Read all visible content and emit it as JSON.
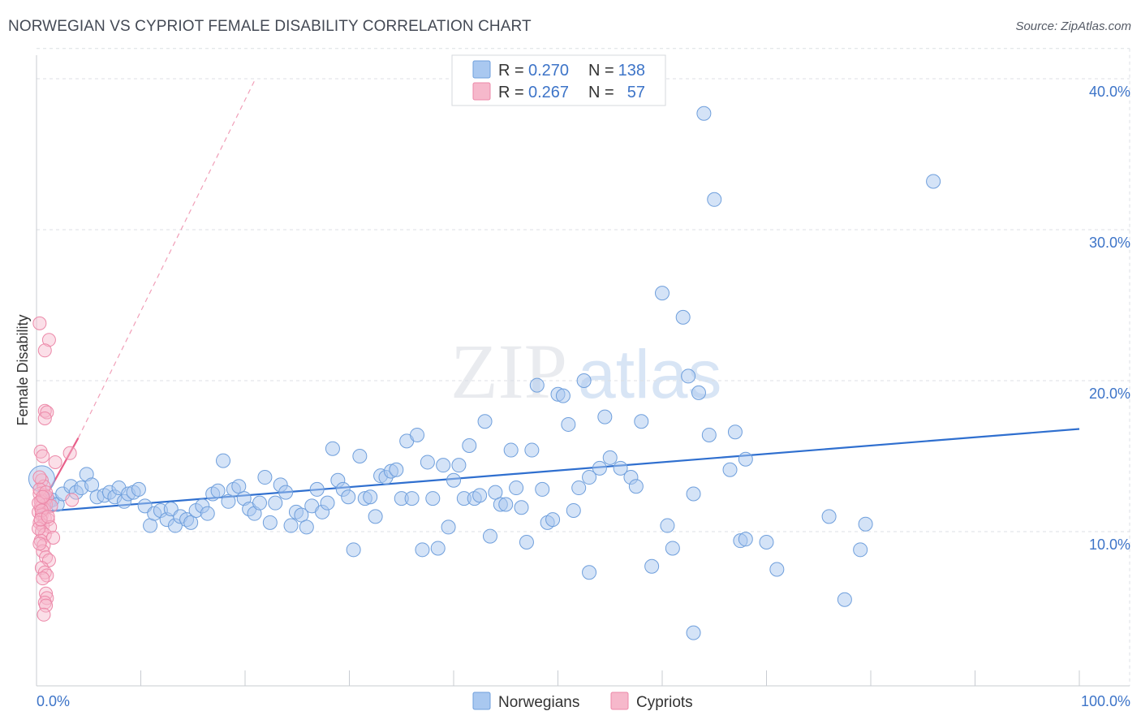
{
  "header": {
    "title": "NORWEGIAN VS CYPRIOT FEMALE DISABILITY CORRELATION CHART",
    "source": "Source: ZipAtlas.com"
  },
  "watermark": {
    "zip": "ZIP",
    "atlas": "atlas"
  },
  "colors": {
    "blue_fill": "#a9c8f0",
    "blue_stroke": "#6f9fdc",
    "blue_line": "#2f6fcf",
    "pink_fill": "#f6b8cb",
    "pink_stroke": "#ec88a8",
    "pink_line": "#e8608a",
    "grid": "#dcdfe4",
    "axis_text": "#3d74c8"
  },
  "legend": {
    "r_label": "R =",
    "n_label": "N =",
    "rows": [
      {
        "series": "Norwegians",
        "r": "0.270",
        "n": "138"
      },
      {
        "series": "Cypriots",
        "r": "0.267",
        "n": "57"
      }
    ]
  },
  "chart_data": {
    "type": "scatter",
    "title": "NORWEGIAN VS CYPRIOT FEMALE DISABILITY CORRELATION CHART",
    "xlabel": "",
    "ylabel": "Female Disability",
    "xlim": [
      0,
      100
    ],
    "ylim": [
      0,
      42
    ],
    "x_tick_labels": [
      "0.0%",
      "100.0%"
    ],
    "y_ticks": [
      10,
      20,
      30,
      40
    ],
    "y_tick_labels": [
      "10.0%",
      "20.0%",
      "30.0%",
      "40.0%"
    ],
    "grid": true,
    "legend_position": "bottom-center",
    "series": [
      {
        "name": "Norwegians",
        "trend": {
          "x": [
            0,
            100
          ],
          "y": [
            11.3,
            16.8
          ]
        },
        "points": [
          [
            0.5,
            13.5
          ],
          [
            0.8,
            12.2
          ],
          [
            1.2,
            12.0
          ],
          [
            1.5,
            12.1
          ],
          [
            2.0,
            11.8
          ],
          [
            2.5,
            12.5
          ],
          [
            3.3,
            13.0
          ],
          [
            3.8,
            12.6
          ],
          [
            4.3,
            12.9
          ],
          [
            4.8,
            13.8
          ],
          [
            5.3,
            13.1
          ],
          [
            5.8,
            12.3
          ],
          [
            6.5,
            12.4
          ],
          [
            7.0,
            12.6
          ],
          [
            7.5,
            12.3
          ],
          [
            7.9,
            12.9
          ],
          [
            8.4,
            12.0
          ],
          [
            8.8,
            12.5
          ],
          [
            9.3,
            12.6
          ],
          [
            9.8,
            12.8
          ],
          [
            10.4,
            11.7
          ],
          [
            10.9,
            10.4
          ],
          [
            11.3,
            11.2
          ],
          [
            11.9,
            11.4
          ],
          [
            12.5,
            10.8
          ],
          [
            12.9,
            11.5
          ],
          [
            13.3,
            10.4
          ],
          [
            13.8,
            11.0
          ],
          [
            14.4,
            10.8
          ],
          [
            14.8,
            10.6
          ],
          [
            15.3,
            11.4
          ],
          [
            15.9,
            11.7
          ],
          [
            16.4,
            11.2
          ],
          [
            16.9,
            12.5
          ],
          [
            17.4,
            12.7
          ],
          [
            17.9,
            14.7
          ],
          [
            18.4,
            12.0
          ],
          [
            18.9,
            12.8
          ],
          [
            19.4,
            13.0
          ],
          [
            19.9,
            12.2
          ],
          [
            20.4,
            11.5
          ],
          [
            20.9,
            11.2
          ],
          [
            21.4,
            11.9
          ],
          [
            21.9,
            13.6
          ],
          [
            22.4,
            10.6
          ],
          [
            22.9,
            11.9
          ],
          [
            23.4,
            13.1
          ],
          [
            23.9,
            12.6
          ],
          [
            24.4,
            10.4
          ],
          [
            24.9,
            11.3
          ],
          [
            25.4,
            11.1
          ],
          [
            25.9,
            10.3
          ],
          [
            26.4,
            11.7
          ],
          [
            26.9,
            12.8
          ],
          [
            27.4,
            11.3
          ],
          [
            27.9,
            11.9
          ],
          [
            28.4,
            15.5
          ],
          [
            28.9,
            13.4
          ],
          [
            29.4,
            12.8
          ],
          [
            29.9,
            12.3
          ],
          [
            30.4,
            8.8
          ],
          [
            31.0,
            15.0
          ],
          [
            31.5,
            12.2
          ],
          [
            32.0,
            12.3
          ],
          [
            32.5,
            11.0
          ],
          [
            33.0,
            13.7
          ],
          [
            33.5,
            13.6
          ],
          [
            34.0,
            14.0
          ],
          [
            34.5,
            14.1
          ],
          [
            35.0,
            12.2
          ],
          [
            35.5,
            16.0
          ],
          [
            36.0,
            12.2
          ],
          [
            36.5,
            16.4
          ],
          [
            37.0,
            8.8
          ],
          [
            37.5,
            14.6
          ],
          [
            38.0,
            12.2
          ],
          [
            38.5,
            8.9
          ],
          [
            39.0,
            14.4
          ],
          [
            39.5,
            10.3
          ],
          [
            40.0,
            13.4
          ],
          [
            40.5,
            14.4
          ],
          [
            41.0,
            12.2
          ],
          [
            41.5,
            15.7
          ],
          [
            42.0,
            12.2
          ],
          [
            42.5,
            12.4
          ],
          [
            43.0,
            17.3
          ],
          [
            43.5,
            9.7
          ],
          [
            44.0,
            12.6
          ],
          [
            44.5,
            11.8
          ],
          [
            45.0,
            11.8
          ],
          [
            45.5,
            15.4
          ],
          [
            46.0,
            12.9
          ],
          [
            46.5,
            11.6
          ],
          [
            47.0,
            9.3
          ],
          [
            47.5,
            15.4
          ],
          [
            48.0,
            19.7
          ],
          [
            48.5,
            12.8
          ],
          [
            49.0,
            10.6
          ],
          [
            49.5,
            10.8
          ],
          [
            50.0,
            19.1
          ],
          [
            50.5,
            19.0
          ],
          [
            51.0,
            17.1
          ],
          [
            51.5,
            11.4
          ],
          [
            52.0,
            12.9
          ],
          [
            52.5,
            20.0
          ],
          [
            53.0,
            13.6
          ],
          [
            54.0,
            14.2
          ],
          [
            54.5,
            17.6
          ],
          [
            55.0,
            14.9
          ],
          [
            56.0,
            14.2
          ],
          [
            57.0,
            13.6
          ],
          [
            57.5,
            13.0
          ],
          [
            58.0,
            17.3
          ],
          [
            60.0,
            25.8
          ],
          [
            60.5,
            10.4
          ],
          [
            61.0,
            8.9
          ],
          [
            62.0,
            24.2
          ],
          [
            62.5,
            20.3
          ],
          [
            63.0,
            12.5
          ],
          [
            63.5,
            19.2
          ],
          [
            64.0,
            37.7
          ],
          [
            64.5,
            16.4
          ],
          [
            65.0,
            32.0
          ],
          [
            66.5,
            14.1
          ],
          [
            67.0,
            16.6
          ],
          [
            67.5,
            9.4
          ],
          [
            68.0,
            14.8
          ],
          [
            76.0,
            11.0
          ],
          [
            77.5,
            5.5
          ],
          [
            79.0,
            8.8
          ],
          [
            79.5,
            10.5
          ],
          [
            86.0,
            33.2
          ],
          [
            63.0,
            3.3
          ],
          [
            68.0,
            9.5
          ],
          [
            70.0,
            9.3
          ],
          [
            71.0,
            7.5
          ],
          [
            59.0,
            7.7
          ],
          [
            53.0,
            7.3
          ]
        ]
      },
      {
        "name": "Cypriots",
        "trend": {
          "x": [
            0,
            4.0
          ],
          "y": [
            11.2,
            16.2
          ],
          "extended_dashed": {
            "x": [
              4.0,
              21.0
            ],
            "y": [
              16.2,
              40.0
            ]
          }
        },
        "points": [
          [
            0.3,
            23.8
          ],
          [
            1.2,
            22.7
          ],
          [
            0.8,
            22.0
          ],
          [
            0.8,
            18.0
          ],
          [
            1.0,
            17.9
          ],
          [
            0.8,
            17.5
          ],
          [
            0.4,
            15.3
          ],
          [
            0.6,
            15.0
          ],
          [
            1.8,
            14.6
          ],
          [
            3.2,
            15.2
          ],
          [
            0.5,
            13.4
          ],
          [
            0.7,
            13.0
          ],
          [
            0.3,
            12.5
          ],
          [
            0.8,
            12.4
          ],
          [
            1.0,
            12.3
          ],
          [
            0.5,
            12.1
          ],
          [
            0.6,
            11.9
          ],
          [
            0.9,
            11.8
          ],
          [
            0.4,
            11.6
          ],
          [
            0.7,
            11.5
          ],
          [
            0.2,
            11.3
          ],
          [
            0.5,
            11.1
          ],
          [
            0.8,
            10.9
          ],
          [
            1.1,
            10.8
          ],
          [
            0.3,
            10.6
          ],
          [
            0.6,
            10.4
          ],
          [
            1.3,
            10.3
          ],
          [
            0.5,
            10.0
          ],
          [
            0.8,
            9.8
          ],
          [
            1.6,
            9.6
          ],
          [
            0.4,
            9.4
          ],
          [
            0.7,
            9.1
          ],
          [
            0.6,
            8.7
          ],
          [
            0.9,
            8.3
          ],
          [
            1.2,
            8.1
          ],
          [
            0.5,
            7.6
          ],
          [
            0.8,
            7.3
          ],
          [
            1.0,
            7.1
          ],
          [
            0.6,
            6.9
          ],
          [
            0.9,
            5.9
          ],
          [
            1.0,
            5.6
          ],
          [
            0.8,
            5.3
          ],
          [
            0.9,
            5.1
          ],
          [
            0.7,
            4.5
          ],
          [
            0.3,
            12.8
          ],
          [
            0.4,
            12.0
          ],
          [
            0.2,
            10.2
          ],
          [
            0.3,
            9.2
          ],
          [
            3.4,
            12.1
          ],
          [
            1.4,
            11.7
          ],
          [
            0.2,
            11.9
          ],
          [
            0.9,
            12.6
          ],
          [
            0.5,
            11.4
          ],
          [
            0.4,
            10.8
          ],
          [
            0.6,
            12.3
          ],
          [
            1.1,
            11.0
          ],
          [
            0.3,
            13.6
          ]
        ]
      }
    ]
  }
}
